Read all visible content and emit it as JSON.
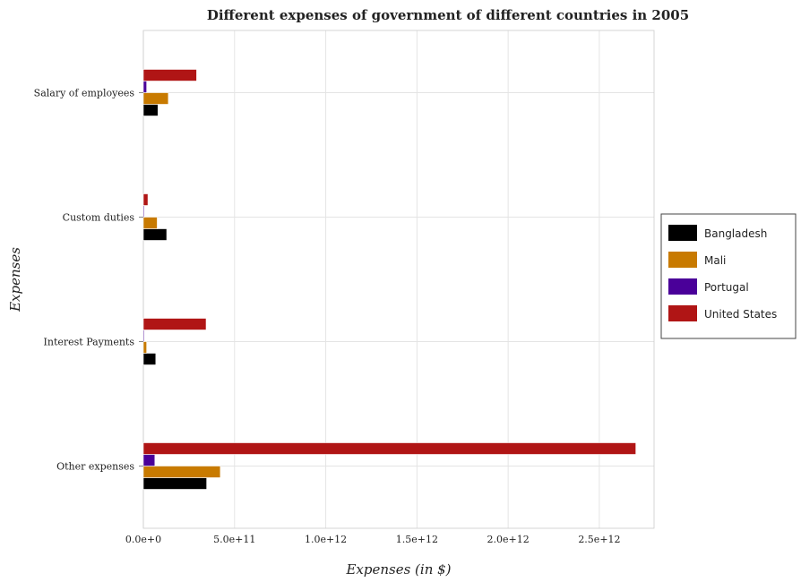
{
  "chart_data": {
    "type": "bar",
    "orientation": "horizontal",
    "title": "Different expenses of government of different countries in 2005",
    "xlabel": "Expenses (in $)",
    "ylabel": "Expenses",
    "categories": [
      "Salary of employees",
      "Custom duties",
      "Interest Payments",
      "Other expenses"
    ],
    "xlim": [
      0,
      2800000000000
    ],
    "xticks": [
      0,
      500000000000,
      1000000000000,
      1500000000000,
      2000000000000,
      2500000000000
    ],
    "xtick_labels": [
      "0.0e+0",
      "5.0e+11",
      "1.0e+12",
      "1.5e+12",
      "2.0e+12",
      "2.5e+12"
    ],
    "grid": true,
    "legend_position": "right",
    "series": [
      {
        "name": "Bangladesh",
        "color": "#000000",
        "values": [
          80000000000,
          128000000000,
          68000000000,
          347000000000
        ]
      },
      {
        "name": "Mali",
        "color": "#c87a00",
        "values": [
          137000000000,
          76000000000,
          18000000000,
          422000000000
        ]
      },
      {
        "name": "Portugal",
        "color": "#4a0099",
        "values": [
          18000000000,
          500000000,
          4500000000,
          63000000000
        ]
      },
      {
        "name": "United States",
        "color": "#b01515",
        "values": [
          292000000000,
          25000000000,
          344000000000,
          2700000000000
        ]
      }
    ]
  }
}
